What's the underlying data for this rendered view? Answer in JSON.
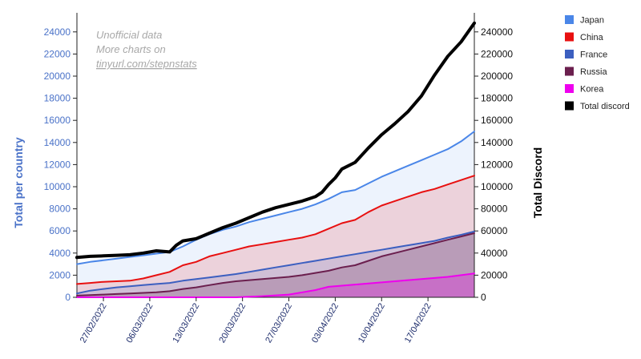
{
  "chart_data": {
    "type": "area",
    "left_axis_title": "Total per country",
    "right_axis_title": "Total Discord",
    "left_ylim": [
      0,
      25000
    ],
    "right_ylim": [
      0,
      250000
    ],
    "left_ticks": [
      "0",
      "2000",
      "4000",
      "6000",
      "8000",
      "10000",
      "12000",
      "14000",
      "16000",
      "18000",
      "20000",
      "22000",
      "24000"
    ],
    "right_ticks": [
      "0",
      "20000",
      "40000",
      "60000",
      "80000",
      "100000",
      "120000",
      "140000",
      "160000",
      "180000",
      "200000",
      "220000",
      "240000"
    ],
    "x_tick_labels": [
      "27/02/2022",
      "06/03/2022",
      "13/03/2022",
      "20/03/2022",
      "27/03/2022",
      "03/04/2022",
      "10/04/2022",
      "17/04/2022"
    ],
    "x_tick_days": [
      4,
      11,
      18,
      25,
      32,
      39,
      46,
      53
    ],
    "x_range_days": [
      0,
      60
    ],
    "annotation": [
      "Unofficial data",
      "More charts on",
      "tinyurl.com/stepnstats"
    ],
    "series": [
      {
        "name": "Japan",
        "color": "#4a86e8",
        "axis": "left",
        "x": [
          0,
          2,
          4,
          6,
          8,
          10,
          12,
          14,
          16,
          18,
          20,
          22,
          24,
          26,
          28,
          30,
          32,
          34,
          36,
          38,
          40,
          42,
          44,
          46,
          48,
          50,
          52,
          54,
          56,
          58,
          60
        ],
        "y": [
          3000,
          3200,
          3350,
          3500,
          3650,
          3800,
          3950,
          4100,
          4600,
          5200,
          5700,
          6100,
          6400,
          6800,
          7100,
          7400,
          7700,
          8000,
          8400,
          8900,
          9500,
          9700,
          10300,
          10900,
          11400,
          11900,
          12400,
          12900,
          13400,
          14100,
          15000
        ]
      },
      {
        "name": "China",
        "color": "#e81010",
        "axis": "left",
        "x": [
          0,
          2,
          4,
          6,
          8,
          10,
          12,
          14,
          16,
          18,
          20,
          22,
          24,
          26,
          28,
          30,
          32,
          34,
          36,
          38,
          40,
          42,
          44,
          46,
          48,
          50,
          52,
          54,
          56,
          58,
          60
        ],
        "y": [
          1200,
          1300,
          1400,
          1450,
          1500,
          1700,
          2000,
          2300,
          2900,
          3200,
          3700,
          4000,
          4300,
          4600,
          4800,
          5000,
          5200,
          5400,
          5700,
          6200,
          6700,
          7000,
          7700,
          8300,
          8700,
          9100,
          9500,
          9800,
          10200,
          10600,
          11000
        ]
      },
      {
        "name": "France",
        "color": "#3c5fc0",
        "axis": "left",
        "x": [
          0,
          2,
          4,
          6,
          8,
          10,
          12,
          14,
          16,
          18,
          20,
          22,
          24,
          26,
          28,
          30,
          32,
          34,
          36,
          38,
          40,
          42,
          44,
          46,
          48,
          50,
          52,
          54,
          56,
          58,
          60
        ],
        "y": [
          350,
          600,
          750,
          900,
          1000,
          1100,
          1200,
          1300,
          1500,
          1650,
          1800,
          1950,
          2100,
          2300,
          2500,
          2700,
          2900,
          3100,
          3300,
          3500,
          3700,
          3900,
          4100,
          4300,
          4500,
          4700,
          4900,
          5100,
          5400,
          5650,
          5950
        ]
      },
      {
        "name": "Russia",
        "color": "#6b1f4e",
        "axis": "left",
        "x": [
          0,
          2,
          4,
          6,
          8,
          10,
          12,
          14,
          16,
          18,
          20,
          22,
          24,
          26,
          28,
          30,
          32,
          34,
          36,
          38,
          40,
          42,
          44,
          46,
          48,
          50,
          52,
          54,
          56,
          58,
          60
        ],
        "y": [
          150,
          200,
          250,
          300,
          350,
          400,
          450,
          550,
          750,
          900,
          1100,
          1300,
          1450,
          1550,
          1650,
          1750,
          1850,
          2000,
          2200,
          2400,
          2700,
          2900,
          3300,
          3700,
          4000,
          4300,
          4600,
          4900,
          5200,
          5500,
          5800
        ]
      },
      {
        "name": "Korea",
        "color": "#ee00ee",
        "axis": "left",
        "x": [
          0,
          4,
          8,
          12,
          16,
          20,
          24,
          28,
          32,
          34,
          36,
          38,
          40,
          42,
          44,
          46,
          48,
          50,
          52,
          54,
          56,
          58,
          60
        ],
        "y": [
          0,
          0,
          0,
          0,
          0,
          0,
          0,
          100,
          250,
          450,
          650,
          950,
          1050,
          1150,
          1250,
          1350,
          1450,
          1550,
          1650,
          1750,
          1850,
          2000,
          2150
        ]
      },
      {
        "name": "Total discord",
        "color": "#000000",
        "axis": "right",
        "x": [
          0,
          2,
          4,
          6,
          8,
          10,
          12,
          14,
          15,
          16,
          18,
          20,
          22,
          24,
          26,
          28,
          30,
          32,
          34,
          36,
          37,
          38,
          39,
          40,
          41,
          42,
          44,
          46,
          48,
          50,
          52,
          54,
          56,
          58,
          60
        ],
        "y": [
          36000,
          37000,
          37500,
          38000,
          38500,
          40000,
          42000,
          41000,
          47000,
          51000,
          53000,
          58000,
          63000,
          67000,
          72000,
          77000,
          81000,
          84000,
          87000,
          91000,
          95000,
          102000,
          108000,
          116000,
          119000,
          122000,
          135000,
          147000,
          157000,
          168000,
          182000,
          201000,
          218000,
          231000,
          248000
        ]
      }
    ]
  }
}
